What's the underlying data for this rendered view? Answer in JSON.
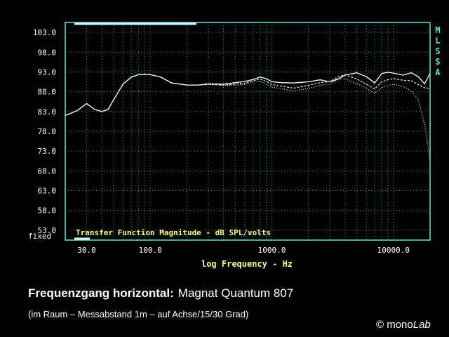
{
  "chart_data": {
    "type": "line",
    "title": "Transfer Function Magnitude - dB SPL/volts",
    "xlabel": "log Frequency - Hz",
    "ylabel": "",
    "xscale": "log",
    "xlim": [
      20,
      20000
    ],
    "ylim": [
      50.5,
      105.5
    ],
    "y_ticks": [
      "103.0",
      "98.0",
      "93.0",
      "88.0",
      "83.0",
      "78.0",
      "73.0",
      "68.0",
      "63.0",
      "58.0",
      "53.0"
    ],
    "y_ticks_values": [
      103,
      98,
      93,
      88,
      83,
      78,
      73,
      68,
      63,
      58,
      53
    ],
    "y_scale_label": "fixed",
    "x_ticks": [
      "30.0",
      "100.0",
      "1000.0",
      "10000.0"
    ],
    "x_ticks_values": [
      30,
      100,
      1000,
      10000
    ],
    "side_label": [
      "M",
      "L",
      "S",
      "S",
      "A"
    ],
    "grid": true,
    "series": [
      {
        "style": "solid",
        "x": [
          20,
          25,
          30,
          35,
          40,
          45,
          50,
          60,
          70,
          80,
          90,
          100,
          120,
          150,
          200,
          250,
          300,
          400,
          500,
          600,
          700,
          800,
          900,
          1000,
          1200,
          1500,
          2000,
          2500,
          3000,
          3500,
          4000,
          5000,
          6000,
          7000,
          8000,
          9000,
          10000,
          12000,
          14000,
          16000,
          18000,
          20000
        ],
        "y": [
          82.0,
          83.2,
          85.0,
          83.5,
          83.0,
          83.5,
          86.0,
          90.0,
          91.7,
          92.3,
          92.4,
          92.3,
          91.8,
          90.2,
          89.7,
          89.7,
          90.0,
          89.9,
          90.3,
          90.6,
          91.1,
          91.7,
          91.3,
          90.5,
          90.3,
          90.2,
          90.5,
          91.0,
          90.5,
          91.2,
          92.2,
          92.8,
          91.8,
          90.2,
          92.6,
          92.9,
          92.7,
          92.2,
          92.8,
          91.8,
          90.0,
          92.6
        ]
      },
      {
        "style": "dashed",
        "x": [
          20,
          25,
          30,
          35,
          40,
          45,
          50,
          60,
          70,
          80,
          90,
          100,
          120,
          150,
          200,
          250,
          300,
          400,
          500,
          600,
          700,
          800,
          900,
          1000,
          1200,
          1500,
          2000,
          2500,
          3000,
          3500,
          4000,
          5000,
          6000,
          7000,
          8000,
          9000,
          10000,
          12000,
          14000,
          16000,
          18000,
          20000
        ],
        "y": [
          82.0,
          83.2,
          85.0,
          83.5,
          83.0,
          83.5,
          86.0,
          90.0,
          91.7,
          92.3,
          92.4,
          92.3,
          91.8,
          90.2,
          89.7,
          89.7,
          89.9,
          89.7,
          89.9,
          90.2,
          90.8,
          91.2,
          90.6,
          89.8,
          89.4,
          88.9,
          89.6,
          90.3,
          90.6,
          91.7,
          92.3,
          91.2,
          89.9,
          88.7,
          90.5,
          91.0,
          91.3,
          90.9,
          90.8,
          89.8,
          89.0,
          88.8
        ]
      },
      {
        "style": "dotted",
        "x": [
          20,
          25,
          30,
          35,
          40,
          45,
          50,
          60,
          70,
          80,
          90,
          100,
          120,
          150,
          200,
          250,
          300,
          400,
          500,
          600,
          700,
          800,
          900,
          1000,
          1200,
          1500,
          2000,
          2500,
          3000,
          3500,
          4000,
          5000,
          6000,
          7000,
          8000,
          9000,
          10000,
          12000,
          14000,
          16000,
          18000,
          20000
        ],
        "y": [
          82.0,
          83.2,
          85.0,
          83.5,
          83.0,
          83.5,
          86.0,
          90.0,
          91.7,
          92.3,
          92.4,
          92.3,
          91.8,
          90.2,
          89.7,
          89.7,
          89.8,
          89.6,
          89.6,
          89.9,
          90.4,
          90.6,
          89.9,
          89.2,
          88.8,
          88.2,
          88.8,
          89.6,
          90.0,
          91.0,
          91.3,
          90.0,
          88.8,
          87.6,
          89.0,
          89.5,
          89.9,
          89.3,
          88.2,
          86.0,
          80.0,
          71.0
        ]
      }
    ]
  },
  "caption": {
    "title_bold": "Frequenzgang horizontal:",
    "model": "Magnat Quantum 807",
    "subtitle": "(im Raum – Messabstand 1m – auf Achse/15/30 Grad)",
    "credit_prefix": "© mono",
    "credit_suffix": "Lab"
  },
  "colors": {
    "background": "#000000",
    "frame": "#55e8d8",
    "grid": "#2aa8a8",
    "tick_text": "#ffffff",
    "axis_label_text": "#ffff66",
    "trace": "#ffffff",
    "top_bar": "#d8f4f4"
  }
}
